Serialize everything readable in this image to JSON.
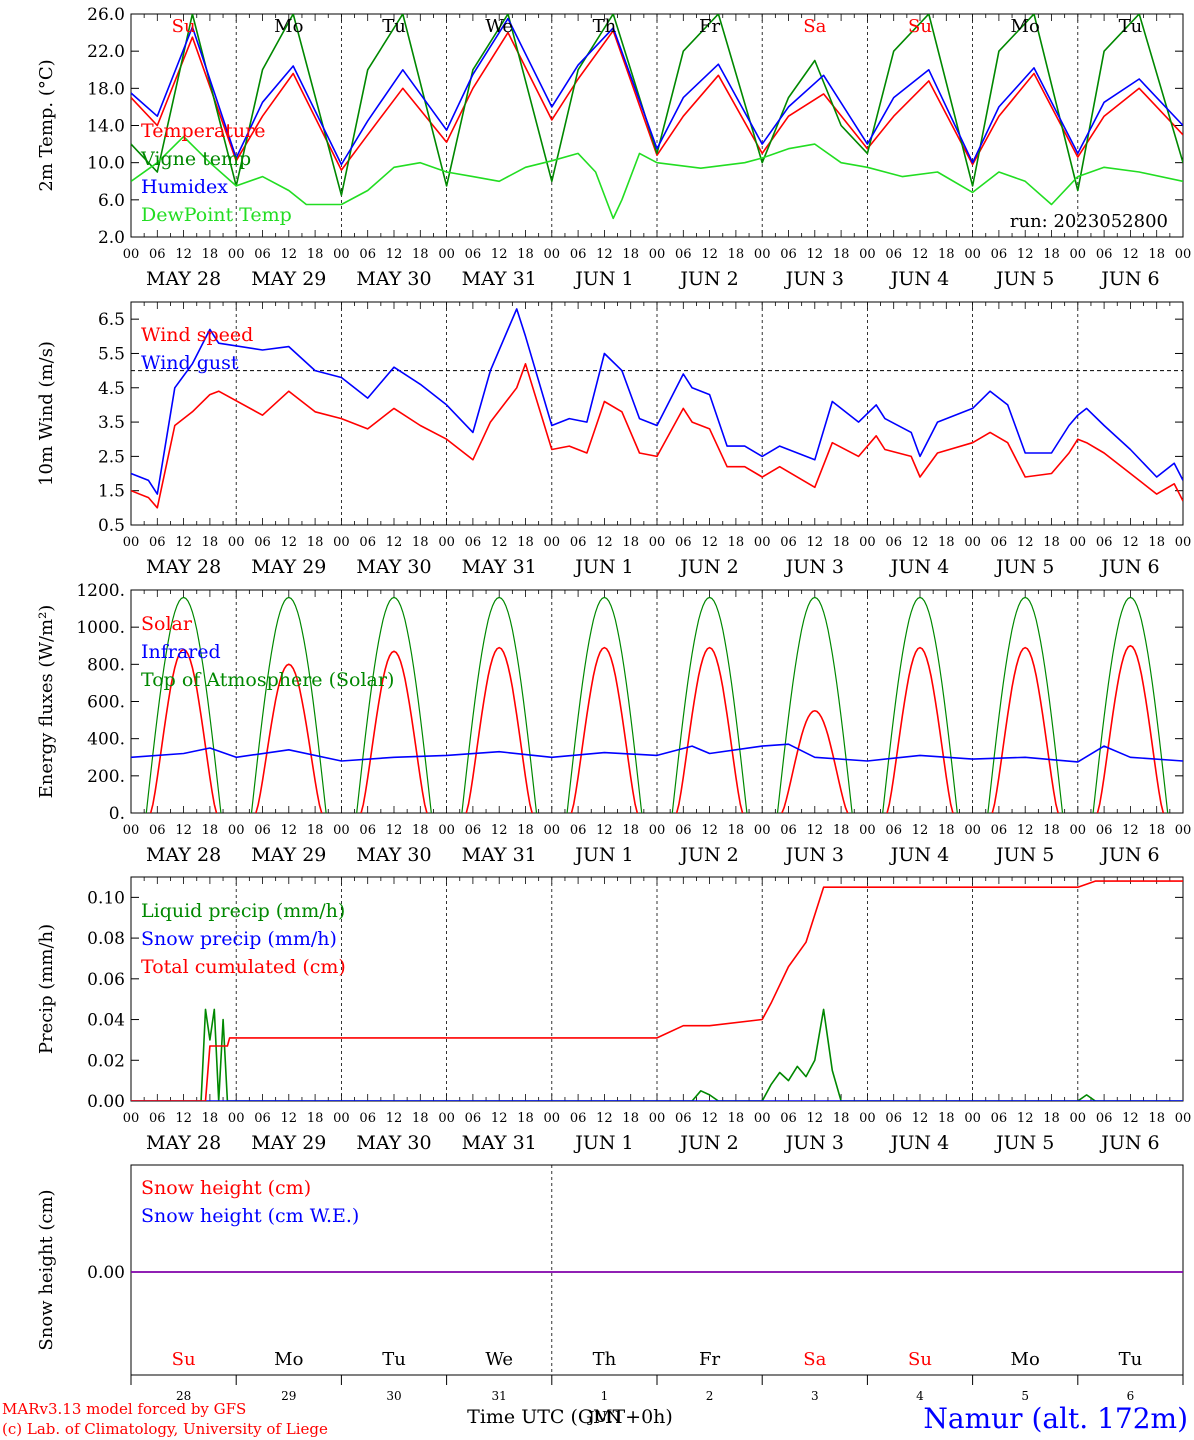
{
  "days": [
    "Su",
    "Mo",
    "Tu",
    "We",
    "Th",
    "Fr",
    "Sa",
    "Su",
    "Mo",
    "Tu"
  ],
  "weekend_flags": [
    true,
    false,
    false,
    false,
    false,
    false,
    true,
    true,
    false,
    false
  ],
  "bottom_days": [
    "Su",
    "Mo",
    "Tu",
    "We",
    "Th",
    "Fr",
    "Sa",
    "Su",
    "Mo",
    "Tu"
  ],
  "bottom_dates": [
    "28",
    "29",
    "30",
    "31",
    "1",
    "2",
    "3",
    "4",
    "5",
    "6"
  ],
  "bottom_month": "JUN",
  "hour_ticks": [
    "00",
    "06",
    "12",
    "18"
  ],
  "date_labels": [
    "MAY 28",
    "MAY 29",
    "MAY 30",
    "MAY 31",
    "JUN  1",
    "JUN  2",
    "JUN  3",
    "JUN  4",
    "JUN  5",
    "JUN  6"
  ],
  "footer": {
    "credit1": "MARv3.13 model forced by GFS",
    "credit2": "(c) Lab. of Climatology, University of Liege",
    "xlabel": "Time UTC (GMT+0h)",
    "station": "Namur (alt. 172m)"
  },
  "colors": {
    "red": "#ff0000",
    "green": "#008800",
    "blue": "#0000ff",
    "lightgreen": "#22dd22",
    "weekend": "#ff0000",
    "purple": "#8000aa"
  },
  "chart_data": [
    {
      "id": "temp",
      "type": "line",
      "ylabel": "2m Temp. (°C)",
      "ylim": [
        2.0,
        26.0
      ],
      "yticks": [
        "2.0",
        "6.0",
        "10.0",
        "14.0",
        "18.0",
        "22.0",
        "26.0"
      ],
      "annotation": "run: 2023052800",
      "x_unit": "hours since MAY 28 00 UTC",
      "legend": [
        "Temperature",
        "Vigne temp",
        "Humidex",
        "DewPoint Temp"
      ],
      "series": [
        {
          "name": "Temperature",
          "color": "red",
          "x": [
            0,
            6,
            14,
            24,
            30,
            37,
            48,
            54,
            62,
            72,
            78,
            86,
            96,
            102,
            110,
            120,
            126,
            134,
            144,
            150,
            158,
            168,
            174,
            182,
            192,
            198,
            206,
            216,
            222,
            230,
            240
          ],
          "y": [
            17,
            14,
            23.5,
            10.2,
            15,
            19.6,
            9.2,
            13,
            18,
            12.2,
            18,
            24,
            14.6,
            19,
            24.2,
            10.8,
            15,
            19.4,
            11,
            15,
            17.4,
            11.5,
            15,
            18.8,
            9.8,
            15,
            19.6,
            10.6,
            15,
            18,
            13
          ]
        },
        {
          "name": "Vigne temp",
          "color": "green",
          "x": [
            0,
            6,
            14,
            24,
            30,
            37,
            48,
            54,
            62,
            72,
            78,
            86,
            96,
            102,
            110,
            120,
            126,
            134,
            144,
            150,
            156,
            162,
            168,
            174,
            182,
            192,
            198,
            206,
            216,
            222,
            230,
            240
          ],
          "y": [
            12,
            9,
            26,
            7.5,
            20,
            26,
            6.5,
            20,
            26,
            7.5,
            20,
            26,
            8,
            20,
            26,
            11,
            22,
            26,
            10,
            17,
            21,
            14,
            11,
            22,
            26,
            7.5,
            22,
            26,
            7,
            22,
            26,
            10
          ]
        },
        {
          "name": "Humidex",
          "color": "blue",
          "x": [
            0,
            6,
            14,
            24,
            30,
            37,
            48,
            54,
            62,
            72,
            78,
            86,
            96,
            102,
            110,
            120,
            126,
            134,
            144,
            150,
            158,
            168,
            174,
            182,
            192,
            198,
            206,
            216,
            222,
            230,
            240
          ],
          "y": [
            17.5,
            15,
            24.6,
            10.5,
            16.5,
            20.4,
            9.8,
            14.5,
            20,
            13.5,
            19.5,
            25.5,
            16,
            20.5,
            24.5,
            11.5,
            17,
            20.6,
            12,
            16,
            19.4,
            12,
            17,
            20,
            10,
            16,
            20.2,
            11,
            16.5,
            19,
            14
          ]
        },
        {
          "name": "DewPoint Temp",
          "color": "lightgreen",
          "x": [
            0,
            6,
            12,
            18,
            24,
            30,
            36,
            40,
            48,
            54,
            60,
            66,
            72,
            78,
            84,
            90,
            96,
            102,
            106,
            110,
            112,
            116,
            120,
            130,
            140,
            144,
            150,
            156,
            162,
            168,
            176,
            184,
            192,
            198,
            204,
            210,
            216,
            222,
            230,
            240
          ],
          "y": [
            8,
            10,
            12.8,
            10,
            7.5,
            8.5,
            7,
            5.5,
            5.5,
            7,
            9.5,
            10,
            9,
            8.5,
            8,
            9.5,
            10.2,
            11,
            9,
            4,
            6,
            11,
            10,
            9.4,
            10,
            10.5,
            11.5,
            12,
            10,
            9.5,
            8.5,
            9,
            6.8,
            9,
            8,
            5.5,
            8.5,
            9.5,
            9,
            8
          ]
        }
      ]
    },
    {
      "id": "wind",
      "type": "line",
      "ylabel": "10m Wind (m/s)",
      "ylim": [
        0.5,
        7.0
      ],
      "yticks": [
        "0.5",
        "1.5",
        "2.5",
        "3.5",
        "4.5",
        "5.5",
        "6.5"
      ],
      "reference_line": 5.0,
      "legend": [
        "Wind speed",
        "Wind gust"
      ],
      "series": [
        {
          "name": "Wind speed",
          "color": "red",
          "x": [
            0,
            4,
            6,
            10,
            14,
            18,
            20,
            30,
            36,
            42,
            48,
            54,
            60,
            66,
            72,
            78,
            82,
            88,
            90,
            96,
            100,
            104,
            108,
            112,
            116,
            120,
            126,
            128,
            132,
            136,
            140,
            144,
            148,
            156,
            160,
            166,
            170,
            172,
            178,
            180,
            184,
            192,
            196,
            200,
            204,
            210,
            214,
            216,
            218,
            222,
            228,
            234,
            238,
            240
          ],
          "y": [
            1.5,
            1.3,
            1.0,
            3.4,
            3.8,
            4.3,
            4.4,
            3.7,
            4.4,
            3.8,
            3.6,
            3.3,
            3.9,
            3.4,
            3.0,
            2.4,
            3.5,
            4.5,
            5.2,
            2.7,
            2.8,
            2.6,
            4.1,
            3.8,
            2.6,
            2.5,
            3.9,
            3.5,
            3.3,
            2.2,
            2.2,
            1.9,
            2.2,
            1.6,
            2.9,
            2.5,
            3.1,
            2.7,
            2.5,
            1.9,
            2.6,
            2.9,
            3.2,
            2.9,
            1.9,
            2.0,
            2.6,
            3.0,
            2.9,
            2.6,
            2.0,
            1.4,
            1.7,
            1.2
          ]
        },
        {
          "name": "Wind gust",
          "color": "blue",
          "x": [
            0,
            4,
            6,
            10,
            14,
            18,
            20,
            30,
            36,
            42,
            48,
            54,
            60,
            66,
            72,
            78,
            82,
            88,
            90,
            96,
            100,
            104,
            108,
            112,
            116,
            120,
            126,
            128,
            132,
            136,
            140,
            144,
            148,
            156,
            160,
            166,
            170,
            172,
            178,
            180,
            184,
            192,
            196,
            200,
            204,
            210,
            214,
            216,
            218,
            222,
            228,
            234,
            238,
            240
          ],
          "y": [
            2.0,
            1.8,
            1.4,
            4.5,
            5.2,
            6.2,
            5.8,
            5.6,
            5.7,
            5.0,
            4.8,
            4.2,
            5.1,
            4.6,
            4.0,
            3.2,
            5.0,
            6.8,
            6.0,
            3.4,
            3.6,
            3.5,
            5.5,
            5.0,
            3.6,
            3.4,
            4.9,
            4.5,
            4.3,
            2.8,
            2.8,
            2.5,
            2.8,
            2.4,
            4.1,
            3.5,
            4.0,
            3.6,
            3.2,
            2.5,
            3.5,
            3.9,
            4.4,
            4.0,
            2.6,
            2.6,
            3.4,
            3.7,
            3.9,
            3.4,
            2.7,
            1.9,
            2.3,
            1.8
          ]
        }
      ]
    },
    {
      "id": "energy",
      "type": "line",
      "ylabel": "Energy fluxes (W/m²)",
      "ylim": [
        0,
        1200
      ],
      "yticks": [
        "0.",
        "200.",
        "400.",
        "600.",
        "800.",
        "1000.",
        "1200."
      ],
      "legend": [
        "Solar",
        "Infrared",
        "Top of Atmosphere (Solar)"
      ],
      "daily_peaks": {
        "Top of Atmosphere (Solar)": [
          1160,
          1160,
          1160,
          1160,
          1160,
          1160,
          1160,
          1160,
          1160,
          1160
        ],
        "Solar": [
          880,
          800,
          870,
          890,
          890,
          890,
          550,
          890,
          890,
          900
        ]
      },
      "series": [
        {
          "name": "Infrared",
          "color": "blue",
          "x": [
            0,
            12,
            18,
            24,
            36,
            48,
            60,
            72,
            84,
            96,
            108,
            120,
            128,
            132,
            144,
            150,
            156,
            168,
            180,
            192,
            204,
            216,
            222,
            228,
            240
          ],
          "y": [
            300,
            320,
            350,
            300,
            340,
            280,
            300,
            310,
            330,
            300,
            325,
            310,
            360,
            320,
            360,
            370,
            300,
            280,
            310,
            290,
            300,
            275,
            360,
            300,
            280
          ]
        }
      ]
    },
    {
      "id": "precip",
      "type": "line",
      "ylabel": "Precip (mm/h)",
      "ylim": [
        0,
        0.11
      ],
      "yticks": [
        "0.00",
        "0.02",
        "0.04",
        "0.06",
        "0.08",
        "0.10"
      ],
      "legend": [
        "Liquid precip (mm/h)",
        "Snow precip (mm/h)",
        "Total cumulated (cm)"
      ],
      "series": [
        {
          "name": "Liquid precip (mm/h)",
          "color": "green",
          "x": [
            0,
            16,
            17,
            18,
            19,
            20,
            21,
            22,
            128,
            130,
            132,
            134,
            140,
            144,
            146,
            148,
            150,
            152,
            154,
            156,
            158,
            160,
            162,
            164,
            216,
            218,
            220,
            240
          ],
          "y": [
            0,
            0,
            0.045,
            0.03,
            0.045,
            0,
            0.04,
            0,
            0,
            0.005,
            0.003,
            0,
            0,
            0,
            0.008,
            0.014,
            0.01,
            0.017,
            0.012,
            0.02,
            0.045,
            0.015,
            0,
            0,
            0,
            0.003,
            0,
            0
          ]
        },
        {
          "name": "Snow precip (mm/h)",
          "color": "blue",
          "x": [
            0,
            240
          ],
          "y": [
            0,
            0
          ]
        },
        {
          "name": "Total cumulated (cm)",
          "color": "red",
          "x": [
            0,
            17,
            18,
            22,
            22.5,
            24,
            120,
            126,
            132,
            144,
            146,
            150,
            154,
            158,
            162,
            216,
            220,
            240
          ],
          "y": [
            0,
            0,
            0.027,
            0.027,
            0.031,
            0.031,
            0.031,
            0.037,
            0.037,
            0.04,
            0.048,
            0.066,
            0.078,
            0.105,
            0.105,
            0.105,
            0.108,
            0.108
          ]
        }
      ]
    },
    {
      "id": "snow",
      "type": "line",
      "ylabel": "Snow height (cm)",
      "yticks": [
        "0.00"
      ],
      "legend": [
        "Snow height (cm)",
        "Snow height (cm W.E.)"
      ],
      "series": [
        {
          "name": "Snow height (cm)",
          "color": "red",
          "x": [
            0,
            240
          ],
          "y": [
            0,
            0
          ]
        },
        {
          "name": "Snow height (cm W.E.)",
          "color": "blue",
          "x": [
            0,
            240
          ],
          "y": [
            0,
            0
          ]
        }
      ]
    }
  ]
}
